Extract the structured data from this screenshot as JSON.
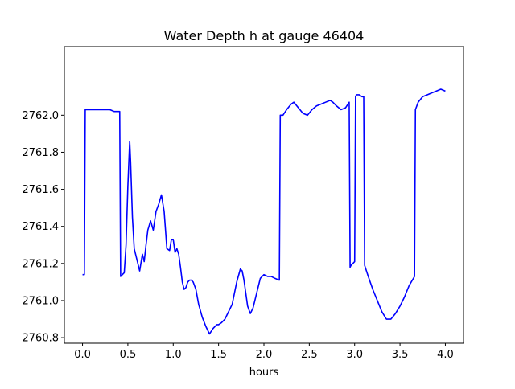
{
  "chart_data": {
    "type": "line",
    "title": "Water Depth h at gauge 46404",
    "xlabel": "hours",
    "ylabel": "",
    "xlim": [
      -0.2,
      4.2
    ],
    "ylim": [
      2760.77,
      2762.37
    ],
    "grid": false,
    "legend": "none",
    "x_ticks": [
      0.0,
      0.5,
      1.0,
      1.5,
      2.0,
      2.5,
      3.0,
      3.5,
      4.0
    ],
    "x_tick_labels": [
      "0.0",
      "0.5",
      "1.0",
      "1.5",
      "2.0",
      "2.5",
      "3.0",
      "3.5",
      "4.0"
    ],
    "y_ticks": [
      2760.8,
      2761.0,
      2761.2,
      2761.4,
      2761.6,
      2761.8,
      2762.0
    ],
    "y_tick_labels": [
      "2760.8",
      "2761.0",
      "2761.2",
      "2761.4",
      "2761.6",
      "2761.8",
      "2762.0"
    ],
    "series": [
      {
        "color": "#0000ff",
        "x": [
          0.0,
          0.02,
          0.03,
          0.2,
          0.3,
          0.35,
          0.41,
          0.42,
          0.46,
          0.48,
          0.5,
          0.52,
          0.53,
          0.55,
          0.57,
          0.6,
          0.63,
          0.66,
          0.68,
          0.7,
          0.72,
          0.75,
          0.78,
          0.81,
          0.84,
          0.87,
          0.9,
          0.93,
          0.96,
          0.98,
          1.0,
          1.02,
          1.04,
          1.06,
          1.08,
          1.1,
          1.12,
          1.14,
          1.16,
          1.18,
          1.2,
          1.22,
          1.25,
          1.28,
          1.32,
          1.36,
          1.4,
          1.44,
          1.48,
          1.5,
          1.53,
          1.57,
          1.6,
          1.65,
          1.7,
          1.74,
          1.76,
          1.78,
          1.8,
          1.82,
          1.85,
          1.88,
          1.92,
          1.96,
          2.0,
          2.04,
          2.08,
          2.12,
          2.17,
          2.18,
          2.21,
          2.25,
          2.3,
          2.33,
          2.38,
          2.43,
          2.48,
          2.53,
          2.58,
          2.63,
          2.68,
          2.73,
          2.76,
          2.8,
          2.85,
          2.9,
          2.94,
          2.95,
          2.96,
          3.0,
          3.01,
          3.02,
          3.05,
          3.08,
          3.1,
          3.11,
          3.15,
          3.2,
          3.25,
          3.3,
          3.35,
          3.4,
          3.45,
          3.5,
          3.55,
          3.6,
          3.66,
          3.67,
          3.7,
          3.75,
          3.8,
          3.85,
          3.9,
          3.95,
          4.0
        ],
        "y": [
          2761.14,
          2761.14,
          2762.03,
          2762.03,
          2762.03,
          2762.02,
          2762.02,
          2761.13,
          2761.15,
          2761.3,
          2761.62,
          2761.86,
          2761.75,
          2761.45,
          2761.28,
          2761.22,
          2761.16,
          2761.25,
          2761.21,
          2761.3,
          2761.38,
          2761.43,
          2761.38,
          2761.48,
          2761.52,
          2761.57,
          2761.48,
          2761.28,
          2761.27,
          2761.33,
          2761.33,
          2761.26,
          2761.28,
          2761.25,
          2761.18,
          2761.1,
          2761.06,
          2761.07,
          2761.1,
          2761.11,
          2761.11,
          2761.1,
          2761.06,
          2760.98,
          2760.91,
          2760.86,
          2760.82,
          2760.85,
          2760.87,
          2760.87,
          2760.88,
          2760.9,
          2760.93,
          2760.98,
          2761.1,
          2761.17,
          2761.16,
          2761.11,
          2761.04,
          2760.97,
          2760.93,
          2760.96,
          2761.04,
          2761.12,
          2761.14,
          2761.13,
          2761.13,
          2761.12,
          2761.11,
          2762.0,
          2762.0,
          2762.03,
          2762.06,
          2762.07,
          2762.04,
          2762.01,
          2762.0,
          2762.03,
          2762.05,
          2762.06,
          2762.07,
          2762.08,
          2762.07,
          2762.05,
          2762.03,
          2762.04,
          2762.07,
          2761.18,
          2761.19,
          2761.21,
          2762.1,
          2762.11,
          2762.11,
          2762.1,
          2762.1,
          2761.19,
          2761.13,
          2761.06,
          2761.0,
          2760.94,
          2760.9,
          2760.9,
          2760.93,
          2760.97,
          2761.02,
          2761.08,
          2761.13,
          2762.03,
          2762.07,
          2762.1,
          2762.11,
          2762.12,
          2762.13,
          2762.14,
          2762.13
        ]
      }
    ]
  }
}
